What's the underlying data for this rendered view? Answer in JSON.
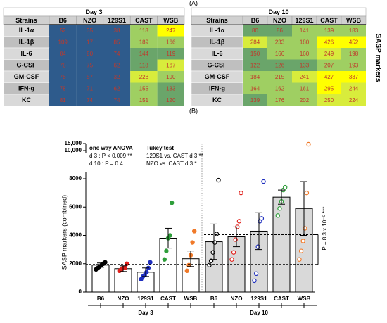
{
  "label_a": "(A)",
  "label_b": "(B)",
  "side_label": "SASP markers",
  "tables": [
    {
      "title": "Day 3",
      "columns": [
        "Strains",
        "B6",
        "NZO",
        "129S1",
        "CAST",
        "WSB"
      ],
      "rows": [
        {
          "name": "IL-1α",
          "values": [
            52,
            35,
            38,
            118,
            247
          ],
          "colors": [
            "#2e5b8c",
            "#2e5b8c",
            "#2e5b8c",
            "#9fcf62",
            "#ffff00"
          ]
        },
        {
          "name": "IL-1β",
          "values": [
            109,
            17,
            85,
            189,
            166
          ],
          "colors": [
            "#2e5b8c",
            "#2e5b8c",
            "#2e5b8c",
            "#9fcf62",
            "#9fcf62"
          ]
        },
        {
          "name": "IL-6",
          "values": [
            84,
            80,
            74,
            144,
            119
          ],
          "colors": [
            "#2e5b8c",
            "#2e5b8c",
            "#2e5b8c",
            "#6aa56a",
            "#6aa56a"
          ]
        },
        {
          "name": "G-CSF",
          "values": [
            78,
            75,
            62,
            118,
            167
          ],
          "colors": [
            "#2e5b8c",
            "#2e5b8c",
            "#2e5b8c",
            "#6aa56a",
            "#d8ec3c"
          ]
        },
        {
          "name": "GM-CSF",
          "values": [
            78,
            57,
            32,
            228,
            190
          ],
          "colors": [
            "#2e5b8c",
            "#2e5b8c",
            "#2e5b8c",
            "#d8ec3c",
            "#9fcf62"
          ]
        },
        {
          "name": "IFN-g",
          "values": [
            78,
            71,
            62,
            155,
            133
          ],
          "colors": [
            "#2e5b8c",
            "#2e5b8c",
            "#2e5b8c",
            "#9fcf62",
            "#6aa56a"
          ]
        },
        {
          "name": "KC",
          "values": [
            81,
            74,
            74,
            151,
            120
          ],
          "colors": [
            "#2e5b8c",
            "#2e5b8c",
            "#2e5b8c",
            "#9fcf62",
            "#6aa56a"
          ]
        }
      ]
    },
    {
      "title": "Day 10",
      "columns": [
        "Strains",
        "B6",
        "NZO",
        "129S1",
        "CAST",
        "WSB"
      ],
      "rows": [
        {
          "name": "IL-1α",
          "values": [
            80,
            86,
            141,
            139,
            183
          ],
          "colors": [
            "#6aa56a",
            "#6aa56a",
            "#9fcf62",
            "#9fcf62",
            "#9fcf62"
          ]
        },
        {
          "name": "IL-1β",
          "values": [
            284,
            233,
            180,
            426,
            452
          ],
          "colors": [
            "#d8ec3c",
            "#9fcf62",
            "#9fcf62",
            "#ffff00",
            "#ffff00"
          ]
        },
        {
          "name": "IL-6",
          "values": [
            150,
            166,
            160,
            249,
            198
          ],
          "colors": [
            "#6aa56a",
            "#9fcf62",
            "#9fcf62",
            "#d8ec3c",
            "#9fcf62"
          ]
        },
        {
          "name": "G-CSF",
          "values": [
            122,
            126,
            133,
            207,
            193
          ],
          "colors": [
            "#6aa56a",
            "#6aa56a",
            "#6aa56a",
            "#9fcf62",
            "#9fcf62"
          ]
        },
        {
          "name": "GM-CSF",
          "values": [
            184,
            215,
            241,
            427,
            337
          ],
          "colors": [
            "#9fcf62",
            "#9fcf62",
            "#d8ec3c",
            "#ffff00",
            "#ffff00"
          ]
        },
        {
          "name": "IFN-g",
          "values": [
            164,
            162,
            161,
            295,
            244
          ],
          "colors": [
            "#9fcf62",
            "#9fcf62",
            "#9fcf62",
            "#ffff00",
            "#d8ec3c"
          ]
        },
        {
          "name": "KC",
          "values": [
            139,
            176,
            202,
            250,
            224
          ],
          "colors": [
            "#6aa56a",
            "#9fcf62",
            "#9fcf62",
            "#d8ec3c",
            "#d8ec3c"
          ]
        }
      ]
    }
  ],
  "chart_data": {
    "type": "bar",
    "y_label": "SASP markers (combined)",
    "ylim": [
      0,
      15000
    ],
    "ybreak": [
      8000,
      10000
    ],
    "yticks": [
      0,
      2000,
      4000,
      6000,
      8000,
      {
        "value": 10000,
        "label": "10,000"
      },
      {
        "value": 15000,
        "label": "15,000"
      }
    ],
    "point_colors": [
      "#000000",
      "#e0201b",
      "#1f2fbf",
      "#2e9e3a",
      "#f07a2a"
    ],
    "ref_lines": [
      1950,
      4050
    ],
    "groups": [
      {
        "name": "Day 3",
        "bar_color": "#ffffff",
        "filled": true,
        "categories": [
          "B6",
          "NZO",
          "129S1",
          "CAST",
          "WSB"
        ],
        "values": [
          1900,
          1650,
          1400,
          3800,
          2350
        ],
        "errors": [
          150,
          200,
          300,
          700,
          550
        ],
        "points": [
          [
            1600,
            1700,
            1800,
            1900,
            2000,
            2100
          ],
          [
            1500,
            1600,
            1700,
            1700,
            2000
          ],
          [
            900,
            1100,
            1200,
            1400,
            1700,
            2100
          ],
          [
            2300,
            2900,
            3800,
            4000,
            6300
          ],
          [
            1500,
            1900,
            2600,
            3500,
            4300
          ]
        ]
      },
      {
        "name": "Day 10",
        "bar_color": "#d9d9d9",
        "filled": false,
        "categories": [
          "B6",
          "NZO",
          "129S1",
          "CAST",
          "WSB"
        ],
        "values": [
          3550,
          3900,
          4300,
          6700,
          5900
        ],
        "errors": [
          1250,
          700,
          1300,
          500,
          1900
        ],
        "points": [
          [
            1900,
            2200,
            2800,
            3500,
            4100,
            7900
          ],
          [
            2300,
            2800,
            3700,
            4600,
            5000,
            7000
          ],
          [
            800,
            1300,
            3200,
            5000,
            5200,
            7800
          ],
          [
            5400,
            5900,
            6400,
            7200,
            7400
          ],
          [
            2300,
            2900,
            3600,
            4500,
            7000,
            14500
          ]
        ]
      }
    ],
    "annotations": {
      "anova": "one way ANOVA",
      "anova_d3": "d 3 : P < 0.009 **",
      "anova_d10": "d 10 : P = 0.4",
      "tukey": "Tukey test",
      "tukey_1": "129S1 vs. CAST d 3 **",
      "tukey_2": "NZO vs. CAST d 3 *",
      "p_bracket": "P = 8.3 x 10⁻⁵ ***"
    }
  }
}
